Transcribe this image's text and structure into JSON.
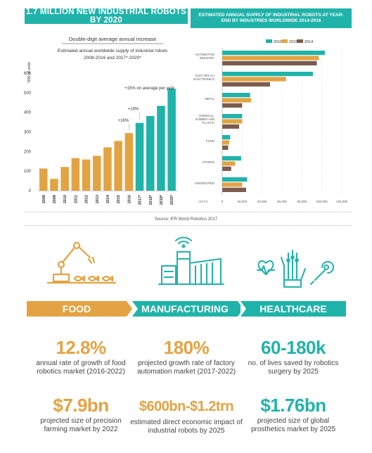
{
  "colors": {
    "teal": "#20b3aa",
    "gold": "#e3a343",
    "brown": "#7b5c4e",
    "gray_bar": "#a7a9ac"
  },
  "left_chart_banner": "1.7 MILLION NEW INDUSTRIAL ROBOTS BY 2020",
  "right_chart_banner": "ESTIMATED ANNUAL SUPPLY OF INDUSTRIAL ROBOTS AT YEAR-END BY INDUSTRIES WORLDWIDE 2014-2016",
  "source": "Source: IFR World Robotics 2017",
  "chart_data": [
    {
      "type": "bar",
      "title": "Double-digit average annual increase",
      "subtitle": "Estimated annual worldwide supply of industrial robots 2008-2016 and 2017*-2020*",
      "ylabel": "'000 of units",
      "ylim": [
        0,
        600
      ],
      "yticks": [
        "0",
        "100",
        "200",
        "300",
        "400",
        "500",
        "600"
      ],
      "categories": [
        "2008",
        "2009",
        "2010",
        "2011",
        "2012",
        "2013",
        "2014",
        "2015",
        "2016",
        "2017*",
        "2018*",
        "2019*",
        "2020*"
      ],
      "values": [
        113,
        60,
        121,
        166,
        159,
        178,
        221,
        254,
        294,
        346,
        381,
        433,
        521
      ],
      "forecast_from_index": 9,
      "annotations": [
        "+15% on average per year",
        "+18%",
        "+16%"
      ]
    },
    {
      "type": "bar",
      "orientation": "horizontal",
      "xlabel": "UNITS",
      "xlim": [
        0,
        120000
      ],
      "xticks": [
        "0",
        "20,000",
        "40,000",
        "60,000",
        "80,000",
        "100,000",
        "120,000"
      ],
      "legend": [
        "2016",
        "2015",
        "2014"
      ],
      "legend_position": "top-right",
      "categories": [
        "AUTOMOTIVE INDUSTRY",
        "ELECTRICAL/ ELECTRONICS",
        "METAL",
        "CHEMICAL, RUBBER AND PLASTIC",
        "FOOD",
        "OTHERS",
        "UNSPECIFIED"
      ],
      "series": [
        {
          "name": "2016",
          "values": [
            103000,
            91000,
            28000,
            20000,
            8000,
            19000,
            25000
          ]
        },
        {
          "name": "2015",
          "values": [
            97000,
            64000,
            29000,
            20000,
            7000,
            13000,
            20000
          ]
        },
        {
          "name": "2014",
          "values": [
            95000,
            48000,
            20000,
            17000,
            6000,
            9000,
            24000
          ]
        }
      ]
    }
  ],
  "sectors": [
    {
      "name": "FOOD",
      "icon": "robot-arm-fish-icon",
      "stat1": {
        "value": "12.8%",
        "text": "annual rate of growth of food robotics market (2016-2022)"
      },
      "stat2": {
        "value": "$7.9bn",
        "text": "projected size of precision farming market by 2022"
      }
    },
    {
      "name": "MANUFACTURING",
      "icon": "factory-wifi-icon",
      "stat1": {
        "value": "180%",
        "text": "projected growth rate of factory automation market (2017-2022)"
      },
      "stat2": {
        "value": "$600bn-$1.2trn",
        "text": "estimated direct economic impact of industrial robots by 2025"
      }
    },
    {
      "name": "HEALTHCARE",
      "icon": "robotic-hand-heartbeat-icon",
      "stat1": {
        "value": "60-180k",
        "text": "no. of lives saved by robotics surgery by 2025"
      },
      "stat2": {
        "value": "$1.76bn",
        "text": "projected size of global prosthetics market by 2025"
      }
    }
  ]
}
